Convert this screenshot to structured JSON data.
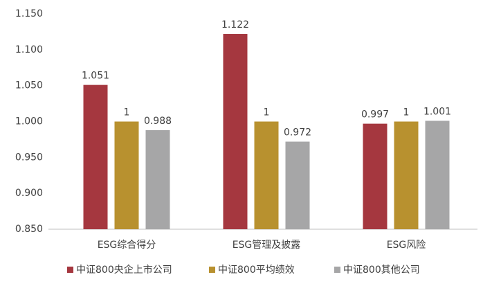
{
  "chart_data": {
    "type": "bar",
    "categories": [
      "ESG综合得分",
      "ESG管理及披露",
      "ESG风险"
    ],
    "series": [
      {
        "name": "中证800央企上市公司",
        "color": "#a5373f",
        "values": [
          1.051,
          1.122,
          0.997
        ]
      },
      {
        "name": "中证800平均绩效",
        "color": "#b8912f",
        "values": [
          1,
          1,
          1
        ]
      },
      {
        "name": "中证800其他公司",
        "color": "#a6a6a7",
        "values": [
          0.988,
          0.972,
          1.001
        ]
      }
    ],
    "ylim": [
      0.85,
      1.15
    ],
    "yticks": [
      {
        "value": 0.85,
        "label": "0.850"
      },
      {
        "value": 0.9,
        "label": "0.900"
      },
      {
        "value": 0.95,
        "label": "0.950"
      },
      {
        "value": 1,
        "label": "1.000"
      },
      {
        "value": 1.05,
        "label": "1.050"
      },
      {
        "value": 1.1,
        "label": "1.100"
      },
      {
        "value": 1.15,
        "label": "1.150"
      }
    ],
    "grid": false,
    "legend": "bottom"
  }
}
